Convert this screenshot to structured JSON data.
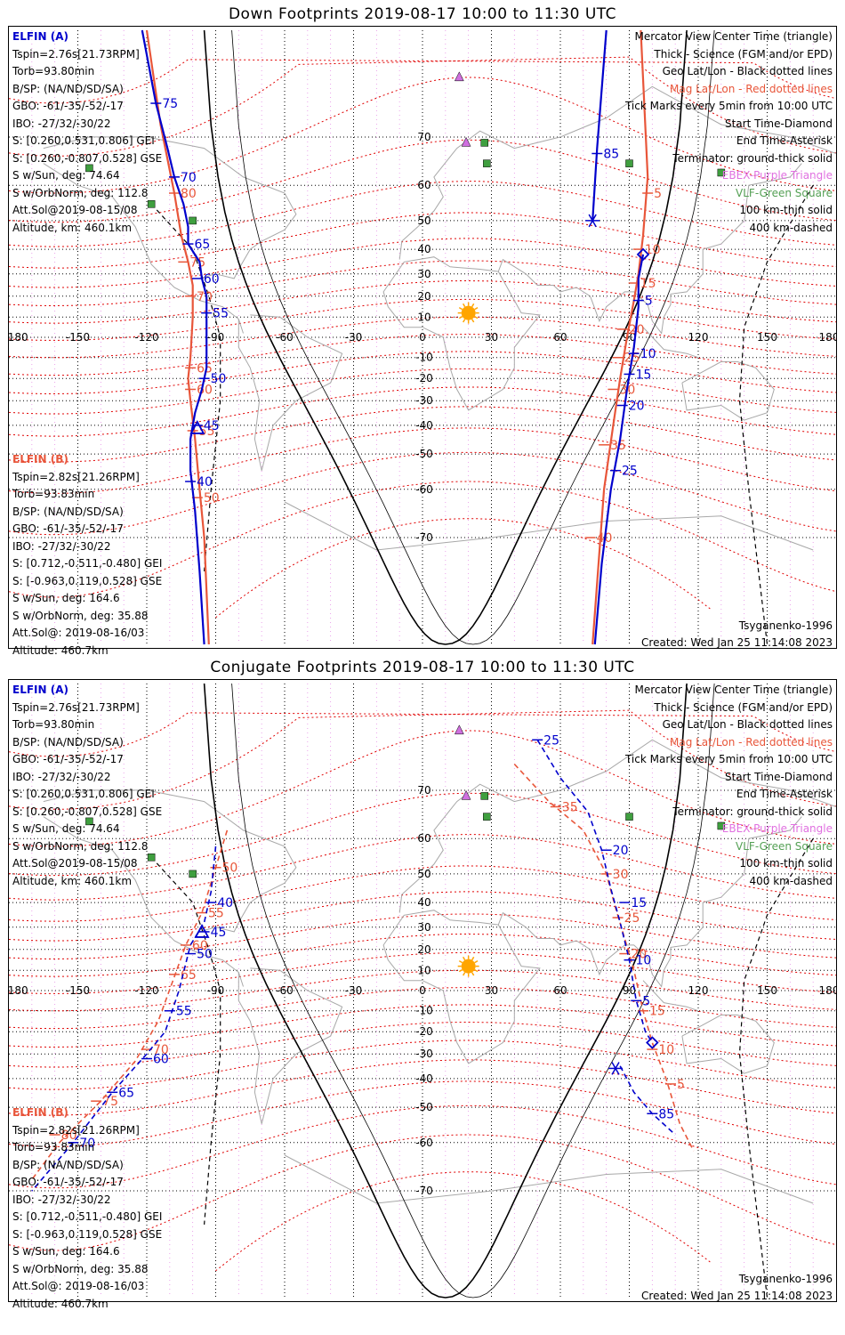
{
  "colors": {
    "elfin_a": "#0000cc",
    "elfin_b": "#e8563a",
    "mag_grid": "#e00000",
    "geo_grid": "#000000",
    "vlf": "#3f9f3f",
    "ebex": "#d070e0",
    "coast": "#a8a8a8",
    "sun": "#ffa500"
  },
  "panels": [
    {
      "title": "Down Footprints 2019-08-17 10:00 to 11:30 UTC",
      "elfin_a": {
        "header": "ELFIN (A)",
        "lines": [
          "Tspin=2.76s[21.73RPM]",
          "Torb=93.80min",
          "B/SP: (NA/ND/SD/SA)",
          "GBO: -61/-35/-52/-17",
          "IBO: -27/32/-30/22",
          "S: [0.260,0.531,0.806] GEI",
          "S: [0.260,-0.807,0.528] GSE",
          "S w/Sun, deg: 74.64",
          "S w/OrbNorm, deg: 112.8",
          "Att.Sol@2019-08-15/08",
          "Altitude, km: 460.1km"
        ]
      },
      "elfin_b": {
        "header": "ELFIN (B)",
        "lines": [
          "Tspin=2.82s[21.26RPM]",
          "Torb=93.83min",
          "B/SP: (NA/ND/SD/SA)",
          "GBO: -61/-35/-52/-17",
          "IBO: -27/32/-30/22",
          "S: [0.712,-0.511,-0.480] GEI",
          "S: [-0.963,0.119,0.528] GSE",
          "S w/Sun, deg: 164.6",
          "S w/OrbNorm, deg: 35.88",
          "Att.Sol@: 2019-08-16/03",
          "Altitude: 460.7km"
        ]
      },
      "legend": [
        {
          "text": "Mercator View Center Time (triangle)",
          "color": "black"
        },
        {
          "text": "Thick - Science (FGM and/or EPD)",
          "color": "black"
        },
        {
          "text": "Geo Lat/Lon - Black dotted lines",
          "color": "black"
        },
        {
          "text": "Mag Lat/Lon - Red dotted lines",
          "color": "red"
        },
        {
          "text": "Tick Marks every 5min from 10:00 UTC",
          "color": "black"
        },
        {
          "text": "Start Time-Diamond",
          "color": "black"
        },
        {
          "text": "End Time-Asterisk",
          "color": "black"
        },
        {
          "text": "Terminator: ground-thick solid",
          "color": "black"
        },
        {
          "text": "EBEX-Purple Triangle",
          "color": "violet"
        },
        {
          "text": "VLF-Green Square",
          "color": "green"
        },
        {
          "text": "100 km-thin solid",
          "color": "black"
        },
        {
          "text": "400 km-dashed",
          "color": "black"
        }
      ],
      "model": "Tsyganenko-1996",
      "created": "Created: Wed Jan 25 11:14:08 2023"
    },
    {
      "title": "Conjugate Footprints 2019-08-17 10:00 to 11:30 UTC",
      "elfin_a": {
        "header": "ELFIN (A)",
        "lines": [
          "Tspin=2.76s[21.73RPM]",
          "Torb=93.80min",
          "B/SP: (NA/ND/SD/SA)",
          "GBO: -61/-35/-52/-17",
          "IBO: -27/32/-30/22",
          "S: [0.260,0.531,0.806] GEI",
          "S: [0.260,-0.807,0.528] GSE",
          "S w/Sun, deg: 74.64",
          "S w/OrbNorm, deg: 112.8",
          "Att.Sol@2019-08-15/08",
          "Altitude, km: 460.1km"
        ]
      },
      "elfin_b": {
        "header": "ELFIN (B)",
        "lines": [
          "Tspin=2.82s[21.26RPM]",
          "Torb=93.83min",
          "B/SP: (NA/ND/SD/SA)",
          "GBO: -61/-35/-52/-17",
          "IBO: -27/32/-30/22",
          "S: [0.712,-0.511,-0.480] GEI",
          "S: [-0.963,0.119,0.528] GSE",
          "S w/Sun, deg: 164.6",
          "S w/OrbNorm, deg: 35.88",
          "Att.Sol@: 2019-08-16/03",
          "Altitude: 460.7km"
        ]
      },
      "legend": [
        {
          "text": "Mercator View Center Time (triangle)",
          "color": "black"
        },
        {
          "text": "Thick - Science (FGM and/or EPD)",
          "color": "black"
        },
        {
          "text": "Geo Lat/Lon - Black dotted lines",
          "color": "black"
        },
        {
          "text": "Mag Lat/Lon - Red dotted lines",
          "color": "red"
        },
        {
          "text": "Tick Marks every 5min from 10:00 UTC",
          "color": "black"
        },
        {
          "text": "Start Time-Diamond",
          "color": "black"
        },
        {
          "text": "End Time-Asterisk",
          "color": "black"
        },
        {
          "text": "Terminator: ground-thick solid",
          "color": "black"
        },
        {
          "text": "EBEX-Purple Triangle",
          "color": "violet"
        },
        {
          "text": "VLF-Green Square",
          "color": "green"
        },
        {
          "text": "100 km-thin solid",
          "color": "black"
        },
        {
          "text": "400 km-dashed",
          "color": "black"
        }
      ],
      "model": "Tsyganenko-1996",
      "created": "Created: Wed Jan 25 11:14:08 2023"
    }
  ],
  "map": {
    "lon_ticks": [
      "-180",
      "-150",
      "-120",
      "-90",
      "-60",
      "-30",
      "0",
      "30",
      "60",
      "90",
      "120",
      "150",
      "180"
    ],
    "lat_ticks": [
      "70",
      "60",
      "50",
      "40",
      "30",
      "20",
      "10",
      "-10",
      "-20",
      "-30",
      "-40",
      "-50",
      "-60",
      "-70"
    ],
    "lon_range": [
      -180,
      180
    ],
    "lat_range": [
      -82,
      82
    ],
    "sun": {
      "lon": 20,
      "lat": 12
    },
    "vlf_sites": [
      {
        "lon": -145,
        "lat": 64
      },
      {
        "lon": -118,
        "lat": 55
      },
      {
        "lon": -100,
        "lat": 50
      },
      {
        "lon": 27,
        "lat": 69
      },
      {
        "lon": 28,
        "lat": 65
      },
      {
        "lon": 90,
        "lat": 65
      },
      {
        "lon": 130,
        "lat": 63
      }
    ],
    "ebex_sites": [
      {
        "lon": 16,
        "lat": 78
      },
      {
        "lon": 19,
        "lat": 69
      }
    ]
  },
  "footprints": {
    "down": {
      "elfin_a": {
        "points": [
          [
            -122,
            82
          ],
          [
            -116,
            75
          ],
          [
            -111,
            68
          ],
          [
            -108,
            62
          ],
          [
            -104,
            55
          ],
          [
            -102,
            48
          ],
          [
            -102,
            42
          ],
          [
            -97,
            35
          ],
          [
            -96,
            28
          ],
          [
            -94,
            20
          ],
          [
            -94,
            5
          ],
          [
            -94,
            -15
          ],
          [
            -96,
            -25
          ],
          [
            -99,
            -35
          ],
          [
            -101,
            -45
          ],
          [
            -101,
            -55
          ],
          [
            -99,
            -65
          ],
          [
            -97,
            -75
          ],
          [
            -95,
            -82
          ]
        ],
        "ticks": [
          {
            "label": "75",
            "lon": -116,
            "lat": 75
          },
          {
            "label": "70",
            "lon": -108,
            "lat": 62
          },
          {
            "label": "65",
            "lon": -102,
            "lat": 42
          },
          {
            "label": "60",
            "lon": -98,
            "lat": 28
          },
          {
            "label": "55",
            "lon": -94,
            "lat": 12
          },
          {
            "label": "50",
            "lon": -95,
            "lat": -20
          },
          {
            "label": "45",
            "lon": -98,
            "lat": -40
          },
          {
            "label": "40",
            "lon": -101,
            "lat": -58
          }
        ],
        "center": {
          "lon": -98,
          "lat": -41
        }
      },
      "elfin_b": {
        "points": [
          [
            -120,
            82
          ],
          [
            -114,
            72
          ],
          [
            -108,
            58
          ],
          [
            -105,
            45
          ],
          [
            -102,
            35
          ],
          [
            -100,
            25
          ],
          [
            -100,
            10
          ],
          [
            -101,
            -10
          ],
          [
            -102,
            -20
          ],
          [
            -101,
            -30
          ],
          [
            -99,
            -45
          ],
          [
            -97,
            -60
          ],
          [
            -95,
            -70
          ],
          [
            -93,
            -82
          ]
        ],
        "ticks": [
          {
            "label": "80",
            "lon": -108,
            "lat": 58
          },
          {
            "label": "75",
            "lon": -104,
            "lat": 35
          },
          {
            "label": "70",
            "lon": -101,
            "lat": 20
          },
          {
            "label": "65",
            "lon": -101,
            "lat": -15
          },
          {
            "label": "60",
            "lon": -101,
            "lat": -25
          },
          {
            "label": "55",
            "lon": -100,
            "lat": -42
          },
          {
            "label": "50",
            "lon": -98,
            "lat": -62
          }
        ]
      },
      "elfin_a_east": {
        "points": [
          [
            80,
            82
          ],
          [
            76,
            68
          ],
          [
            74,
            50
          ]
        ],
        "ticks": [
          {
            "label": "85",
            "lon": 76,
            "lat": 67
          }
        ],
        "end": {
          "lon": 74,
          "lat": 50
        }
      },
      "elfin_a_south": {
        "points": [
          [
            96,
            38
          ],
          [
            94,
            28
          ],
          [
            94,
            15
          ],
          [
            92,
            -5
          ],
          [
            89,
            -25
          ],
          [
            86,
            -45
          ],
          [
            82,
            -60
          ],
          [
            78,
            -74
          ],
          [
            75,
            -82
          ]
        ],
        "ticks": [
          {
            "label": "5",
            "lon": 94,
            "lat": 18
          },
          {
            "label": "10",
            "lon": 92,
            "lat": -8
          },
          {
            "label": "15",
            "lon": 90,
            "lat": -18
          },
          {
            "label": "20",
            "lon": 87,
            "lat": -32
          },
          {
            "label": "25",
            "lon": 84,
            "lat": -55
          }
        ],
        "start": {
          "lon": 96,
          "lat": 38
        }
      },
      "elfin_b_east": {
        "points": [
          [
            95,
            82
          ],
          [
            98,
            62
          ],
          [
            96,
            45
          ],
          [
            94,
            30
          ],
          [
            92,
            18
          ],
          [
            89,
            0
          ],
          [
            86,
            -20
          ],
          [
            83,
            -40
          ],
          [
            79,
            -60
          ],
          [
            74,
            -82
          ]
        ],
        "ticks": [
          {
            "label": "5",
            "lon": 98,
            "lat": 58
          },
          {
            "label": "10",
            "lon": 94,
            "lat": 40
          },
          {
            "label": "15",
            "lon": 92,
            "lat": 26
          },
          {
            "label": "20",
            "lon": 87,
            "lat": 4
          },
          {
            "label": "25",
            "lon": 85,
            "lat": -10
          },
          {
            "label": "30",
            "lon": 83,
            "lat": -25
          },
          {
            "label": "35",
            "lon": 79,
            "lat": -47
          },
          {
            "label": "40",
            "lon": 73,
            "lat": -70
          }
        ]
      }
    },
    "conjugate": {
      "elfin_a": {
        "points": [
          [
            -90,
            58
          ],
          [
            -92,
            44
          ],
          [
            -95,
            32
          ],
          [
            -101,
            22
          ],
          [
            -106,
            0
          ],
          [
            -112,
            -20
          ],
          [
            -120,
            -30
          ],
          [
            -135,
            -45
          ],
          [
            -152,
            -60
          ],
          [
            -170,
            -70
          ]
        ],
        "ticks": [
          {
            "label": "40",
            "lon": -92,
            "lat": 40
          },
          {
            "label": "45",
            "lon": -95,
            "lat": 28
          },
          {
            "label": "50",
            "lon": -101,
            "lat": 18
          },
          {
            "label": "55",
            "lon": -110,
            "lat": -10
          },
          {
            "label": "60",
            "lon": -120,
            "lat": -32
          },
          {
            "label": "65",
            "lon": -135,
            "lat": -45
          },
          {
            "label": "70",
            "lon": -152,
            "lat": -60
          }
        ],
        "center": {
          "lon": -96,
          "lat": 28
        }
      },
      "elfin_b": {
        "points": [
          [
            -85,
            62
          ],
          [
            -90,
            52
          ],
          [
            -96,
            36
          ],
          [
            -103,
            22
          ],
          [
            -107,
            10
          ],
          [
            -115,
            -15
          ],
          [
            -125,
            -33
          ],
          [
            -140,
            -48
          ],
          [
            -158,
            -60
          ],
          [
            -170,
            -68
          ]
        ],
        "ticks": [
          {
            "label": "50",
            "lon": -90,
            "lat": 52
          },
          {
            "label": "55",
            "lon": -96,
            "lat": 36
          },
          {
            "label": "60",
            "lon": -103,
            "lat": 22
          },
          {
            "label": "65",
            "lon": -108,
            "lat": 8
          },
          {
            "label": "70",
            "lon": -120,
            "lat": -28
          },
          {
            "label": "75",
            "lon": -142,
            "lat": -48
          },
          {
            "label": "80",
            "lon": -160,
            "lat": -58
          }
        ]
      },
      "elfin_a_east": {
        "points": [
          [
            50,
            77
          ],
          [
            60,
            72
          ],
          [
            72,
            66
          ],
          [
            78,
            57
          ],
          [
            82,
            45
          ],
          [
            86,
            32
          ],
          [
            90,
            15
          ],
          [
            93,
            -5
          ],
          [
            97,
            -20
          ],
          [
            100,
            -25
          ]
        ],
        "ticks": [
          {
            "label": "25",
            "lon": 50,
            "lat": 77
          },
          {
            "label": "20",
            "lon": 80,
            "lat": 57
          },
          {
            "label": "15",
            "lon": 88,
            "lat": 40
          },
          {
            "label": "10",
            "lon": 90,
            "lat": 15
          },
          {
            "label": "5",
            "lon": 93,
            "lat": -5
          }
        ],
        "start": {
          "lon": 100,
          "lat": -25
        }
      },
      "elfin_a_south": {
        "points": [
          [
            86,
            -35
          ],
          [
            92,
            -45
          ],
          [
            100,
            -52
          ],
          [
            110,
            -58
          ]
        ],
        "ticks": [
          {
            "label": "85",
            "lon": 100,
            "lat": -52
          }
        ],
        "end": {
          "lon": 84,
          "lat": -36
        }
      },
      "elfin_b_east": {
        "points": [
          [
            40,
            74
          ],
          [
            55,
            68
          ],
          [
            70,
            62
          ],
          [
            80,
            50
          ],
          [
            84,
            38
          ],
          [
            88,
            25
          ],
          [
            92,
            10
          ],
          [
            96,
            -10
          ],
          [
            100,
            -25
          ],
          [
            106,
            -40
          ],
          [
            112,
            -55
          ],
          [
            118,
            -62
          ]
        ],
        "ticks": [
          {
            "label": "35",
            "lon": 58,
            "lat": 67
          },
          {
            "label": "30",
            "lon": 80,
            "lat": 50
          },
          {
            "label": "25",
            "lon": 85,
            "lat": 34
          },
          {
            "label": "20",
            "lon": 88,
            "lat": 18
          },
          {
            "label": "15",
            "lon": 96,
            "lat": -10
          },
          {
            "label": "10",
            "lon": 100,
            "lat": -28
          },
          {
            "label": "5",
            "lon": 108,
            "lat": -42
          }
        ]
      }
    }
  }
}
